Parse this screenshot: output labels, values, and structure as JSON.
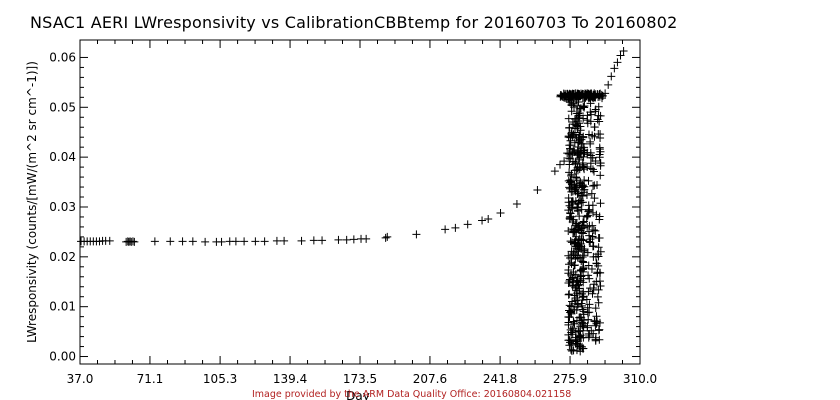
{
  "chart_data": {
    "type": "scatter",
    "title": "NSAC1 AERI LWresponsivity vs CalibrationCBBtemp for 20160703 To 20160802",
    "xlabel": "Day",
    "ylabel": "LWresponsivity (counts/[mW/(m^2 sr cm^-1)])",
    "xlim": [
      37.0,
      310.0
    ],
    "ylim": [
      -0.0015,
      0.0635
    ],
    "x_ticks": [
      "37.0",
      "71.1",
      "105.3",
      "139.4",
      "173.5",
      "207.6",
      "241.8",
      "275.9",
      "310.0"
    ],
    "y_ticks": [
      "0.00",
      "0.01",
      "0.02",
      "0.03",
      "0.04",
      "0.05",
      "0.06"
    ],
    "marker": "+",
    "marker_color": "#000000",
    "grid": false,
    "legend": "none",
    "points": [
      [
        37.5,
        0.0231
      ],
      [
        39.0,
        0.0231
      ],
      [
        40.5,
        0.0231
      ],
      [
        42.0,
        0.0231
      ],
      [
        43.5,
        0.0231
      ],
      [
        45.0,
        0.0231
      ],
      [
        46.5,
        0.0231
      ],
      [
        48.0,
        0.0232
      ],
      [
        49.5,
        0.0232
      ],
      [
        51.5,
        0.0232
      ],
      [
        59.5,
        0.023
      ],
      [
        60.3,
        0.0231
      ],
      [
        60.8,
        0.023
      ],
      [
        61.4,
        0.0231
      ],
      [
        62.0,
        0.023
      ],
      [
        62.8,
        0.0231
      ],
      [
        63.5,
        0.023
      ],
      [
        73.5,
        0.0231
      ],
      [
        81.0,
        0.0231
      ],
      [
        87.0,
        0.0231
      ],
      [
        92.0,
        0.0231
      ],
      [
        98.0,
        0.023
      ],
      [
        103.5,
        0.023
      ],
      [
        106.0,
        0.023
      ],
      [
        110.0,
        0.0231
      ],
      [
        113.0,
        0.0231
      ],
      [
        117.0,
        0.0231
      ],
      [
        122.5,
        0.0231
      ],
      [
        127.0,
        0.0231
      ],
      [
        133.0,
        0.0232
      ],
      [
        136.5,
        0.0232
      ],
      [
        145.0,
        0.0232
      ],
      [
        151.0,
        0.0233
      ],
      [
        155.0,
        0.0233
      ],
      [
        163.0,
        0.0234
      ],
      [
        167.0,
        0.0234
      ],
      [
        170.5,
        0.0235
      ],
      [
        174.0,
        0.0236
      ],
      [
        176.5,
        0.0236
      ],
      [
        186.0,
        0.0238
      ],
      [
        186.8,
        0.024
      ],
      [
        201.0,
        0.0245
      ],
      [
        215.0,
        0.0255
      ],
      [
        220.0,
        0.0258
      ],
      [
        226.0,
        0.0265
      ],
      [
        233.0,
        0.0273
      ],
      [
        236.0,
        0.0276
      ],
      [
        242.0,
        0.0288
      ],
      [
        250.0,
        0.0306
      ],
      [
        260.0,
        0.0334
      ],
      [
        268.5,
        0.0372
      ],
      [
        271.0,
        0.0385
      ],
      [
        273.0,
        0.0392
      ],
      [
        274.5,
        0.0408
      ],
      [
        293.0,
        0.0528
      ],
      [
        294.5,
        0.0545
      ],
      [
        296.0,
        0.0562
      ],
      [
        297.5,
        0.0578
      ],
      [
        299.0,
        0.059
      ],
      [
        300.5,
        0.0604
      ],
      [
        302.0,
        0.0613
      ]
    ],
    "clusters": [
      {
        "type": "band",
        "x_range": [
          271.0,
          292.0
        ],
        "y": 0.0523,
        "y_spread": 0.0005,
        "count": 140
      },
      {
        "type": "column",
        "x_range": [
          275.0,
          283.0
        ],
        "y_range": [
          0.001,
          0.052
        ],
        "count": 380
      },
      {
        "type": "column",
        "x_range": [
          284.0,
          291.0
        ],
        "y_range": [
          0.003,
          0.051
        ],
        "count": 140
      }
    ],
    "image_credit": "Image provided by the ARM Data Quality Office: 20160804.021158"
  }
}
